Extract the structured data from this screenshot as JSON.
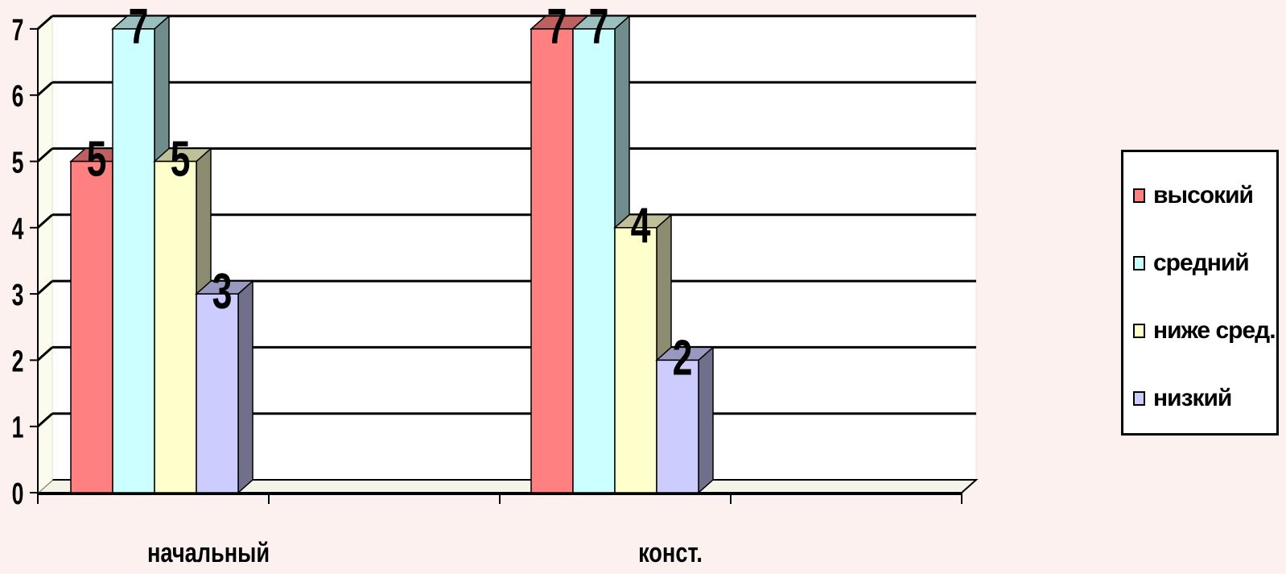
{
  "chart_data": {
    "type": "bar",
    "categories": [
      "начальный",
      "конст."
    ],
    "series": [
      {
        "name": "высокий",
        "values": [
          5,
          7
        ],
        "color": "#ff8080"
      },
      {
        "name": "средний",
        "values": [
          7,
          7
        ],
        "color": "#ccffff"
      },
      {
        "name": "ниже сред.",
        "values": [
          5,
          4
        ],
        "color": "#ffffcc"
      },
      {
        "name": "низкий",
        "values": [
          3,
          2
        ],
        "color": "#ccccff"
      }
    ],
    "yticks": [
      "0",
      "1",
      "2",
      "3",
      "4",
      "5",
      "6",
      "7"
    ],
    "ylim": [
      0,
      7
    ],
    "grid": true,
    "legend_position": "right",
    "data_labels": true,
    "style": "3d"
  },
  "colors": {
    "background": "#fdf1f0",
    "plot_area": "#ffffff",
    "grid": "#000000"
  }
}
